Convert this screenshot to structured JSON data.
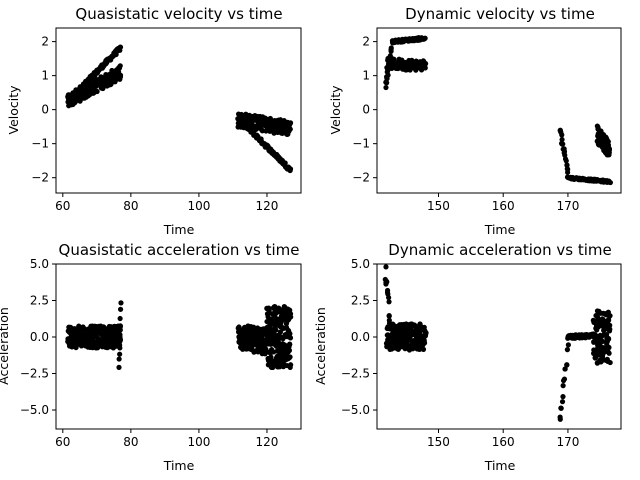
{
  "chart_data": [
    {
      "type": "scatter",
      "title": "Quasistatic velocity vs time",
      "xlabel": "Time",
      "ylabel": "Velocity",
      "xlim": [
        58,
        130
      ],
      "ylim": [
        -2.45,
        2.4
      ],
      "xticks": [
        60,
        80,
        100,
        120
      ],
      "yticks": [
        -2,
        -1,
        0,
        1,
        2
      ],
      "grid": false,
      "marker_color": "#000000",
      "series": [
        {
          "segments": [
            {
              "x0": 61.5,
              "x1": 77.0,
              "y0": 0.25,
              "y1": 1.82,
              "spread": 0.06,
              "n": 120
            },
            {
              "x0": 61.5,
              "x1": 77.0,
              "y0": 0.25,
              "y1": 1.1,
              "spread": 0.2,
              "n": 160
            },
            {
              "x0": 111.5,
              "x1": 127.0,
              "y0": -0.25,
              "y1": -1.78,
              "spread": 0.06,
              "n": 120
            },
            {
              "x0": 111.5,
              "x1": 127.0,
              "y0": -0.3,
              "y1": -0.55,
              "spread": 0.22,
              "n": 160
            }
          ]
        }
      ]
    },
    {
      "type": "scatter",
      "title": "Dynamic velocity vs time",
      "xlabel": "Time",
      "ylabel": "Velocity",
      "xlim": [
        140.5,
        178.2
      ],
      "ylim": [
        -2.45,
        2.4
      ],
      "xticks": [
        150,
        160,
        170
      ],
      "yticks": [
        -2,
        -1,
        0,
        1,
        2
      ],
      "grid": false,
      "marker_color": "#000000",
      "series": [
        {
          "segments": [
            {
              "x0": 141.8,
              "x1": 142.8,
              "y0": 0.7,
              "y1": 1.8,
              "spread": 0.06,
              "n": 20
            },
            {
              "x0": 142.8,
              "x1": 148.0,
              "y0": 2.0,
              "y1": 2.1,
              "spread": 0.04,
              "n": 60
            },
            {
              "x0": 142.0,
              "x1": 148.0,
              "y0": 1.35,
              "y1": 1.3,
              "spread": 0.16,
              "n": 90
            },
            {
              "x0": 168.8,
              "x1": 170.0,
              "y0": -0.6,
              "y1": -1.8,
              "spread": 0.08,
              "n": 20
            },
            {
              "x0": 170.0,
              "x1": 176.5,
              "y0": -2.0,
              "y1": -2.12,
              "spread": 0.03,
              "n": 70
            },
            {
              "x0": 174.5,
              "x1": 176.5,
              "y0": -0.7,
              "y1": -1.2,
              "spread": 0.25,
              "n": 70
            }
          ]
        }
      ]
    },
    {
      "type": "scatter",
      "title": "Quasistatic acceleration vs time",
      "xlabel": "Time",
      "ylabel": "Acceleration",
      "xlim": [
        58,
        130
      ],
      "ylim": [
        -6.3,
        5.0
      ],
      "xticks": [
        60,
        80,
        100,
        120
      ],
      "yticks": [
        -5.0,
        -2.5,
        0.0,
        2.5,
        5.0
      ],
      "ytick_labels": [
        "−5.0",
        "−2.5",
        "0.0",
        "2.5",
        "5.0"
      ],
      "grid": false,
      "marker_color": "#000000",
      "series": [
        {
          "segments": [
            {
              "x0": 61.5,
              "x1": 77.0,
              "y0": 0.0,
              "y1": 0.0,
              "spread": 0.75,
              "n": 320
            },
            {
              "x0": 76.5,
              "x1": 77.0,
              "y0": -2.2,
              "y1": 2.4,
              "spread": 0.2,
              "n": 10
            },
            {
              "x0": 111.5,
              "x1": 120.0,
              "y0": 0.0,
              "y1": -0.3,
              "spread": 0.9,
              "n": 160
            },
            {
              "x0": 120.0,
              "x1": 127.0,
              "y0": 0.0,
              "y1": 0.0,
              "spread": 2.1,
              "n": 220
            }
          ]
        }
      ]
    },
    {
      "type": "scatter",
      "title": "Dynamic acceleration vs time",
      "xlabel": "Time",
      "ylabel": "Acceleration",
      "xlim": [
        140.5,
        178.2
      ],
      "ylim": [
        -6.3,
        5.0
      ],
      "xticks": [
        150,
        160,
        170
      ],
      "yticks": [
        -5.0,
        -2.5,
        0.0,
        2.5,
        5.0
      ],
      "ytick_labels": [
        "−5.0",
        "−2.5",
        "0.0",
        "2.5",
        "5.0"
      ],
      "grid": false,
      "marker_color": "#000000",
      "series": [
        {
          "segments": [
            {
              "x0": 141.8,
              "x1": 142.5,
              "y0": 4.5,
              "y1": 1.0,
              "spread": 0.6,
              "n": 15
            },
            {
              "x0": 142.0,
              "x1": 148.0,
              "y0": 0.0,
              "y1": 0.0,
              "spread": 0.9,
              "n": 200
            },
            {
              "x0": 168.8,
              "x1": 170.0,
              "y0": -5.7,
              "y1": -1.0,
              "spread": 0.5,
              "n": 15
            },
            {
              "x0": 170.0,
              "x1": 174.0,
              "y0": 0.0,
              "y1": 0.1,
              "spread": 0.12,
              "n": 80
            },
            {
              "x0": 174.0,
              "x1": 176.5,
              "y0": 0.0,
              "y1": 0.0,
              "spread": 1.8,
              "n": 120
            }
          ]
        }
      ]
    }
  ]
}
